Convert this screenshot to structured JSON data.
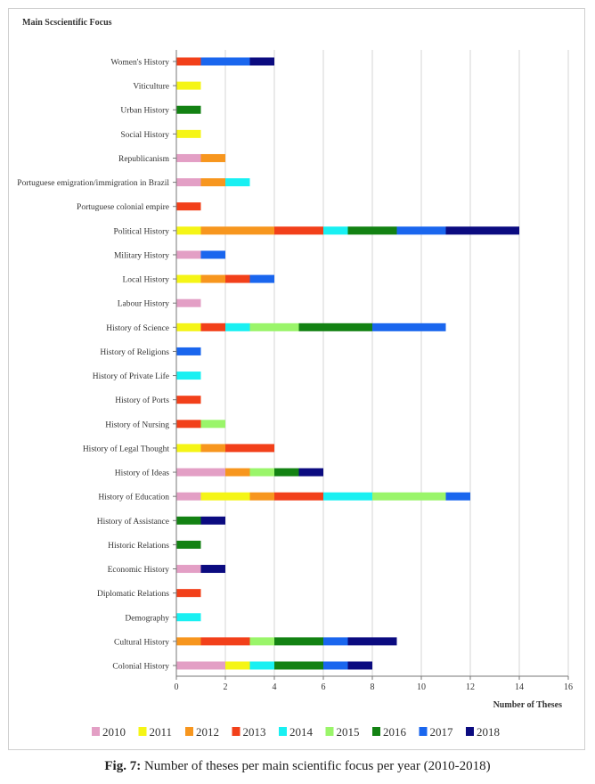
{
  "chart_data": {
    "type": "bar",
    "orientation": "horizontal",
    "stacked": true,
    "title": "Main Scscientific Focus",
    "xlabel": "Number of Theses",
    "ylabel": "",
    "xlim": [
      0,
      16
    ],
    "xticks": [
      0,
      2,
      4,
      6,
      8,
      10,
      12,
      14,
      16
    ],
    "grid": true,
    "legend_position": "bottom",
    "categories": [
      "Women's History",
      "Viticulture",
      "Urban History",
      "Social History",
      "Republicanism",
      "Portuguese emigration/immigration in Brazil",
      "Portuguese colonial empire",
      "Political History",
      "Military History",
      "Local History",
      "Labour History",
      "History of Science",
      "History of Religions",
      "History of Private Life",
      "History of Ports",
      "History of Nursing",
      "History of Legal Thought",
      "History of Ideas",
      "History of Education",
      "History of Assistance",
      "Historic Relations",
      "Economic History",
      "Diplomatic Relations",
      "Demography",
      "Cultural History",
      "Colonial History"
    ],
    "series": [
      {
        "name": "2010",
        "color": "#e39fc5",
        "values": [
          0,
          0,
          0,
          0,
          1,
          1,
          0,
          0,
          1,
          0,
          1,
          0,
          0,
          0,
          0,
          0,
          0,
          2,
          1,
          0,
          0,
          1,
          0,
          0,
          0,
          2
        ]
      },
      {
        "name": "2011",
        "color": "#f5f516",
        "values": [
          0,
          1,
          0,
          1,
          0,
          0,
          0,
          1,
          0,
          1,
          0,
          1,
          0,
          0,
          0,
          0,
          1,
          0,
          2,
          0,
          0,
          0,
          0,
          0,
          0,
          1
        ]
      },
      {
        "name": "2012",
        "color": "#f7961e",
        "values": [
          0,
          0,
          0,
          0,
          1,
          1,
          0,
          3,
          0,
          1,
          0,
          0,
          0,
          0,
          0,
          0,
          1,
          1,
          1,
          0,
          0,
          0,
          0,
          0,
          1,
          0
        ]
      },
      {
        "name": "2013",
        "color": "#f2401a",
        "values": [
          1,
          0,
          0,
          0,
          0,
          0,
          1,
          2,
          0,
          1,
          0,
          1,
          0,
          0,
          1,
          1,
          2,
          0,
          2,
          0,
          0,
          0,
          1,
          0,
          2,
          0
        ]
      },
      {
        "name": "2014",
        "color": "#19f0f2",
        "values": [
          0,
          0,
          0,
          0,
          0,
          1,
          0,
          1,
          0,
          0,
          0,
          1,
          0,
          1,
          0,
          0,
          0,
          0,
          2,
          0,
          0,
          0,
          0,
          1,
          0,
          1
        ]
      },
      {
        "name": "2015",
        "color": "#9af56a",
        "values": [
          0,
          0,
          0,
          0,
          0,
          0,
          0,
          0,
          0,
          0,
          0,
          2,
          0,
          0,
          0,
          1,
          0,
          1,
          3,
          0,
          0,
          0,
          0,
          0,
          1,
          0
        ]
      },
      {
        "name": "2016",
        "color": "#138213",
        "values": [
          0,
          0,
          1,
          0,
          0,
          0,
          0,
          2,
          0,
          0,
          0,
          3,
          0,
          0,
          0,
          0,
          0,
          1,
          0,
          1,
          1,
          0,
          0,
          0,
          2,
          2
        ]
      },
      {
        "name": "2017",
        "color": "#1a66ee",
        "values": [
          2,
          0,
          0,
          0,
          0,
          0,
          0,
          2,
          1,
          1,
          0,
          3,
          1,
          0,
          0,
          0,
          0,
          0,
          1,
          0,
          0,
          0,
          0,
          0,
          1,
          1
        ]
      },
      {
        "name": "2018",
        "color": "#0b0b80",
        "values": [
          1,
          0,
          0,
          0,
          0,
          0,
          0,
          3,
          0,
          0,
          0,
          0,
          0,
          0,
          0,
          0,
          0,
          1,
          0,
          1,
          0,
          1,
          0,
          0,
          2,
          1
        ]
      }
    ]
  },
  "caption": {
    "label": "Fig. 7:",
    "text": " Number of theses per main scientific focus per year (2010-2018)"
  }
}
